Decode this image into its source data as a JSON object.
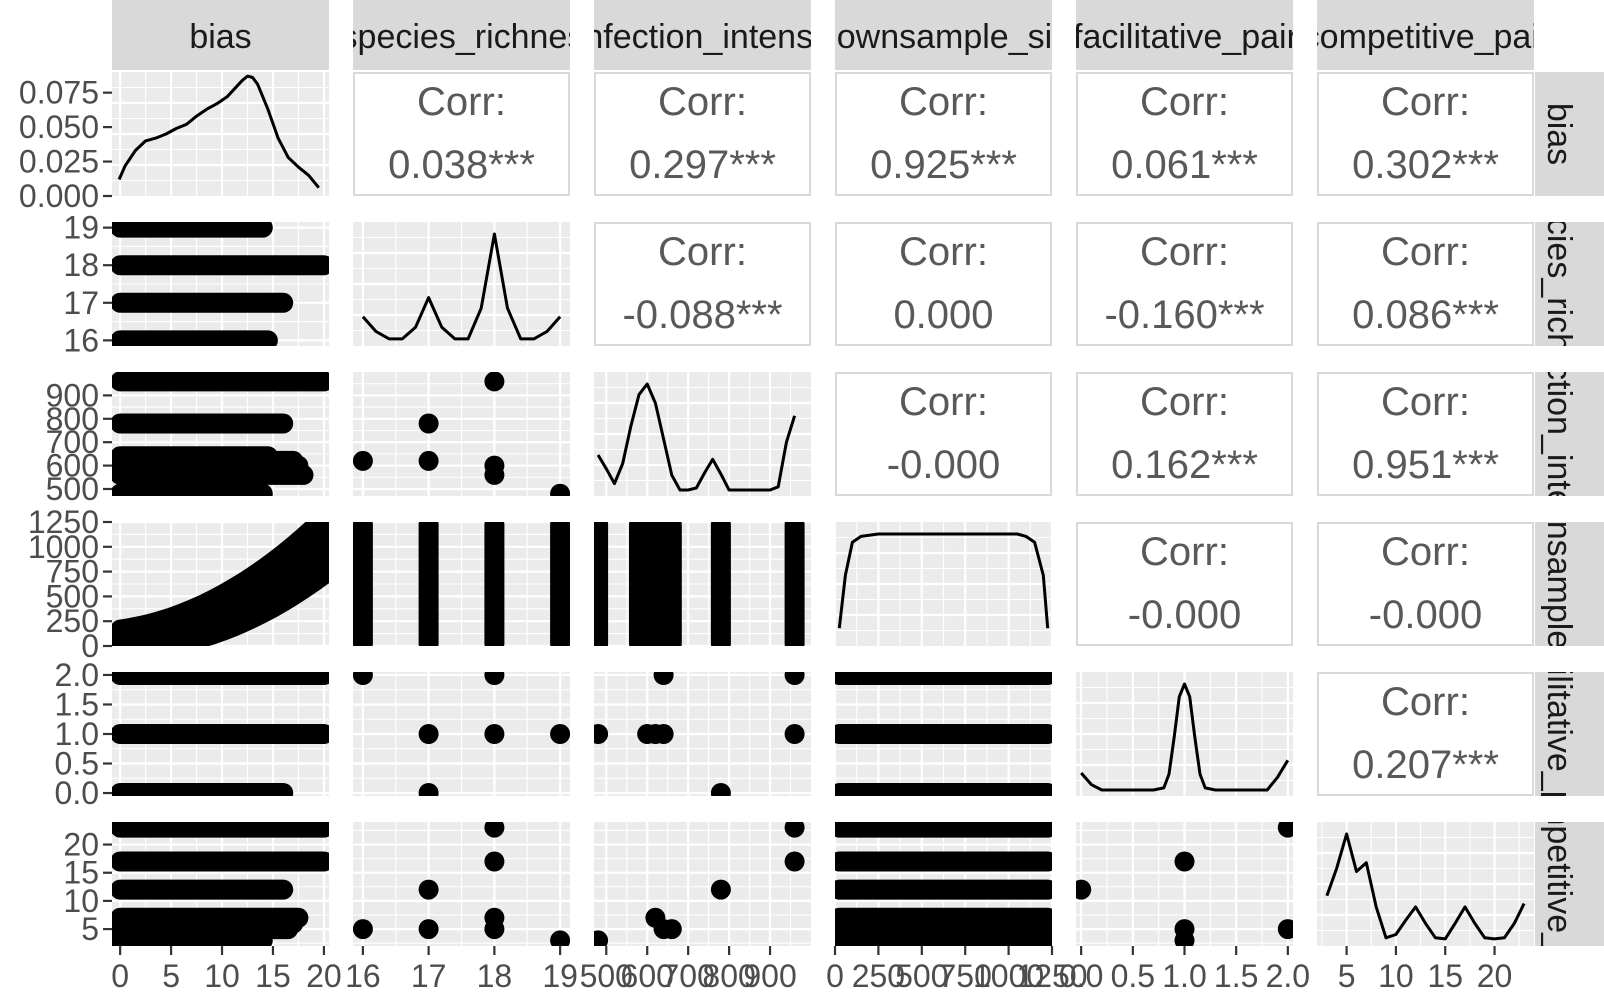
{
  "chart_data": {
    "type": "scatter",
    "variables": [
      {
        "id": "v1",
        "strip": "bias",
        "clip": false,
        "range": [
          -0.8,
          20.5
        ],
        "ticks": [
          0,
          5,
          10,
          15,
          20
        ],
        "tick_labels": [
          "0",
          "5",
          "10",
          "15",
          "20"
        ],
        "density_range": [
          0,
          0.09
        ],
        "density_ticks": [
          0,
          0.025,
          0.05,
          0.075
        ],
        "density_tick_labels": [
          "0.000",
          "0.025",
          "0.050",
          "0.075"
        ]
      },
      {
        "id": "v2",
        "strip": "species_richness",
        "clip": true,
        "range": [
          15.85,
          19.15
        ],
        "ticks": [
          16,
          17,
          18,
          19
        ],
        "tick_labels": [
          "16",
          "17",
          "18",
          "19"
        ]
      },
      {
        "id": "v3",
        "strip": "infection_intensity",
        "clip": true,
        "range": [
          470,
          1000
        ],
        "ticks": [
          500,
          600,
          700,
          800,
          900
        ],
        "tick_labels": [
          "500",
          "600",
          "700",
          "800",
          "900"
        ]
      },
      {
        "id": "v4",
        "strip": "downsample_size",
        "clip": true,
        "range": [
          0,
          1250
        ],
        "ticks": [
          0,
          250,
          500,
          750,
          1000,
          1250
        ],
        "tick_labels": [
          "0",
          "250",
          "500",
          "750",
          "1000",
          "1250"
        ]
      },
      {
        "id": "v5",
        "strip": "facilitative_pairs",
        "clip": true,
        "range": [
          -0.05,
          2.05
        ],
        "ticks": [
          0,
          0.5,
          1,
          1.5,
          2
        ],
        "tick_labels": [
          "0.0",
          "0.5",
          "1.0",
          "1.5",
          "2.0"
        ]
      },
      {
        "id": "v6",
        "strip": "competitive_pairs",
        "clip": true,
        "range": [
          2,
          24
        ],
        "ticks": [
          5,
          10,
          15,
          20
        ],
        "tick_labels": [
          "5",
          "10",
          "15",
          "20"
        ]
      }
    ],
    "strip_labels": [
      "bias",
      "_species_richness",
      "_infection_intensity",
      "_downsample_size",
      "_facilitative_pairs",
      "_competitive_pairs"
    ],
    "correlations": [
      {
        "row": 1,
        "col": 2,
        "label": "Corr:",
        "value": "0.038***"
      },
      {
        "row": 1,
        "col": 3,
        "label": "Corr:",
        "value": "0.297***"
      },
      {
        "row": 1,
        "col": 4,
        "label": "Corr:",
        "value": "0.925***"
      },
      {
        "row": 1,
        "col": 5,
        "label": "Corr:",
        "value": "0.061***"
      },
      {
        "row": 1,
        "col": 6,
        "label": "Corr:",
        "value": "0.302***"
      },
      {
        "row": 2,
        "col": 3,
        "label": "Corr:",
        "value": "-0.088***"
      },
      {
        "row": 2,
        "col": 4,
        "label": "Corr:",
        "value": "0.000"
      },
      {
        "row": 2,
        "col": 5,
        "label": "Corr:",
        "value": "-0.160***"
      },
      {
        "row": 2,
        "col": 6,
        "label": "Corr:",
        "value": "0.086***"
      },
      {
        "row": 3,
        "col": 4,
        "label": "Corr:",
        "value": "-0.000"
      },
      {
        "row": 3,
        "col": 5,
        "label": "Corr:",
        "value": "0.162***"
      },
      {
        "row": 3,
        "col": 6,
        "label": "Corr:",
        "value": "0.951***"
      },
      {
        "row": 4,
        "col": 5,
        "label": "Corr:",
        "value": "-0.000"
      },
      {
        "row": 4,
        "col": 6,
        "label": "Corr:",
        "value": "-0.000"
      },
      {
        "row": 5,
        "col": 6,
        "label": "Corr:",
        "value": "0.207***"
      }
    ],
    "densities": {
      "v1": {
        "x": [
          -0.1,
          0.5,
          1.5,
          2.5,
          3.5,
          4.5,
          5.5,
          6.5,
          7.5,
          8.5,
          9.5,
          10.5,
          11.5,
          12,
          12.5,
          13,
          13.5,
          14.5,
          15.5,
          16.5,
          17.5,
          18.5,
          19.5
        ],
        "y": [
          0.012,
          0.022,
          0.033,
          0.04,
          0.042,
          0.045,
          0.049,
          0.052,
          0.058,
          0.063,
          0.067,
          0.072,
          0.08,
          0.084,
          0.087,
          0.086,
          0.081,
          0.063,
          0.042,
          0.028,
          0.021,
          0.015,
          0.006
        ]
      },
      "v2": {
        "x": [
          16,
          16.2,
          16.4,
          16.6,
          16.8,
          17,
          17.2,
          17.4,
          17.6,
          17.8,
          18,
          18.2,
          18.4,
          18.6,
          18.8,
          19
        ],
        "y": [
          0.22,
          0.08,
          0.01,
          0.01,
          0.12,
          0.4,
          0.12,
          0.01,
          0.01,
          0.3,
          1.0,
          0.3,
          0.01,
          0.01,
          0.08,
          0.22
        ]
      },
      "v3": {
        "x": [
          480,
          500,
          520,
          540,
          560,
          580,
          600,
          620,
          640,
          660,
          680,
          700,
          720,
          740,
          760,
          780,
          800,
          820,
          840,
          860,
          880,
          900,
          920,
          940,
          960
        ],
        "y": [
          0.33,
          0.2,
          0.06,
          0.25,
          0.6,
          0.9,
          1.0,
          0.82,
          0.48,
          0.14,
          0.0,
          0.0,
          0.02,
          0.16,
          0.29,
          0.15,
          0.0,
          0.0,
          0.0,
          0.0,
          0.0,
          0.0,
          0.03,
          0.45,
          0.7
        ]
      },
      "v4": {
        "x": [
          25,
          60,
          100,
          150,
          250,
          350,
          500,
          650,
          800,
          950,
          1050,
          1100,
          1150,
          1200,
          1225
        ],
        "y": [
          0.1,
          0.55,
          0.83,
          0.88,
          0.9,
          0.9,
          0.9,
          0.9,
          0.9,
          0.9,
          0.9,
          0.88,
          0.83,
          0.55,
          0.1
        ]
      },
      "v5": {
        "x": [
          0,
          0.1,
          0.2,
          0.3,
          0.4,
          0.5,
          0.6,
          0.7,
          0.8,
          0.85,
          0.9,
          0.95,
          1,
          1.05,
          1.1,
          1.15,
          1.2,
          1.3,
          1.4,
          1.5,
          1.6,
          1.7,
          1.8,
          1.9,
          2
        ],
        "y": [
          0.16,
          0.05,
          0.0,
          0.0,
          0.0,
          0.0,
          0.0,
          0.0,
          0.02,
          0.15,
          0.5,
          0.88,
          1.0,
          0.88,
          0.5,
          0.15,
          0.02,
          0.0,
          0.0,
          0.0,
          0.0,
          0.0,
          0.0,
          0.12,
          0.28
        ]
      },
      "v6": {
        "x": [
          3,
          4,
          5,
          6,
          7,
          8,
          9,
          10,
          11,
          12,
          13,
          14,
          15,
          16,
          17,
          18,
          19,
          20,
          21,
          22,
          23
        ],
        "y": [
          0.4,
          0.65,
          0.96,
          0.62,
          0.7,
          0.3,
          0.02,
          0.05,
          0.18,
          0.3,
          0.15,
          0.02,
          0.01,
          0.15,
          0.3,
          0.15,
          0.02,
          0.01,
          0.02,
          0.15,
          0.33
        ]
      }
    },
    "levels": {
      "v2": [
        16,
        17,
        18,
        19
      ],
      "v3": [
        480,
        580,
        600,
        620,
        640,
        660,
        780,
        960
      ],
      "v5": [
        0,
        1,
        2
      ],
      "v6": [
        3,
        5,
        7,
        12,
        17,
        23
      ]
    },
    "y_levels_with_bias": {
      "v2": [
        {
          "y": 19,
          "x": [
            0,
            14
          ]
        },
        {
          "y": 18,
          "x": [
            0,
            20
          ]
        },
        {
          "y": 17,
          "x": [
            0,
            16
          ]
        },
        {
          "y": 16,
          "x": [
            0,
            14.5
          ]
        }
      ],
      "v3": [
        {
          "y": 960,
          "x": [
            0,
            20
          ]
        },
        {
          "y": 780,
          "x": [
            0,
            16
          ]
        },
        {
          "y": 640,
          "x": [
            0,
            14.5
          ]
        },
        {
          "y": 620,
          "x": [
            0,
            17
          ]
        },
        {
          "y": 600,
          "x": [
            0,
            17.5
          ]
        },
        {
          "y": 580,
          "x": [
            0,
            17.5
          ]
        },
        {
          "y": 560,
          "x": [
            0,
            18
          ]
        },
        {
          "y": 480,
          "x": [
            0,
            14
          ]
        }
      ],
      "v5": [
        {
          "y": 2,
          "x": [
            0,
            20
          ]
        },
        {
          "y": 1,
          "x": [
            0,
            20
          ]
        },
        {
          "y": 0,
          "x": [
            0,
            16
          ]
        }
      ],
      "v6": [
        {
          "y": 23,
          "x": [
            0,
            20
          ]
        },
        {
          "y": 17,
          "x": [
            0,
            20
          ]
        },
        {
          "y": 12,
          "x": [
            0,
            16
          ]
        },
        {
          "y": 7,
          "x": [
            0,
            17.5
          ]
        },
        {
          "y": 6,
          "x": [
            0,
            17
          ]
        },
        {
          "y": 5,
          "x": [
            0,
            16.5
          ]
        },
        {
          "y": 3,
          "x": [
            0,
            14
          ]
        }
      ]
    },
    "pair_points": {
      "r3c2": [
        [
          16,
          620
        ],
        [
          17,
          620
        ],
        [
          17,
          780
        ],
        [
          18,
          960
        ],
        [
          18,
          600
        ],
        [
          18,
          560
        ],
        [
          19,
          480
        ]
      ],
      "r5c2": [
        [
          16,
          2
        ],
        [
          17,
          1
        ],
        [
          17,
          0
        ],
        [
          18,
          2
        ],
        [
          18,
          1
        ],
        [
          19,
          1
        ]
      ],
      "r5c3": [
        [
          480,
          1
        ],
        [
          600,
          1
        ],
        [
          620,
          1
        ],
        [
          640,
          1
        ],
        [
          640,
          2
        ],
        [
          780,
          0
        ],
        [
          960,
          2
        ],
        [
          960,
          1
        ]
      ],
      "r6c2": [
        [
          16,
          5
        ],
        [
          17,
          5
        ],
        [
          17,
          12
        ],
        [
          18,
          23
        ],
        [
          18,
          17
        ],
        [
          18,
          7
        ],
        [
          18,
          5
        ],
        [
          19,
          3
        ]
      ],
      "r6c3": [
        [
          480,
          3
        ],
        [
          620,
          7
        ],
        [
          640,
          5
        ],
        [
          660,
          5
        ],
        [
          780,
          12
        ],
        [
          960,
          23
        ],
        [
          960,
          17
        ]
      ],
      "r6c5": [
        [
          0,
          12
        ],
        [
          1,
          17
        ],
        [
          1,
          5
        ],
        [
          1,
          3
        ],
        [
          2,
          23
        ],
        [
          2,
          5
        ]
      ]
    },
    "grid": true
  }
}
